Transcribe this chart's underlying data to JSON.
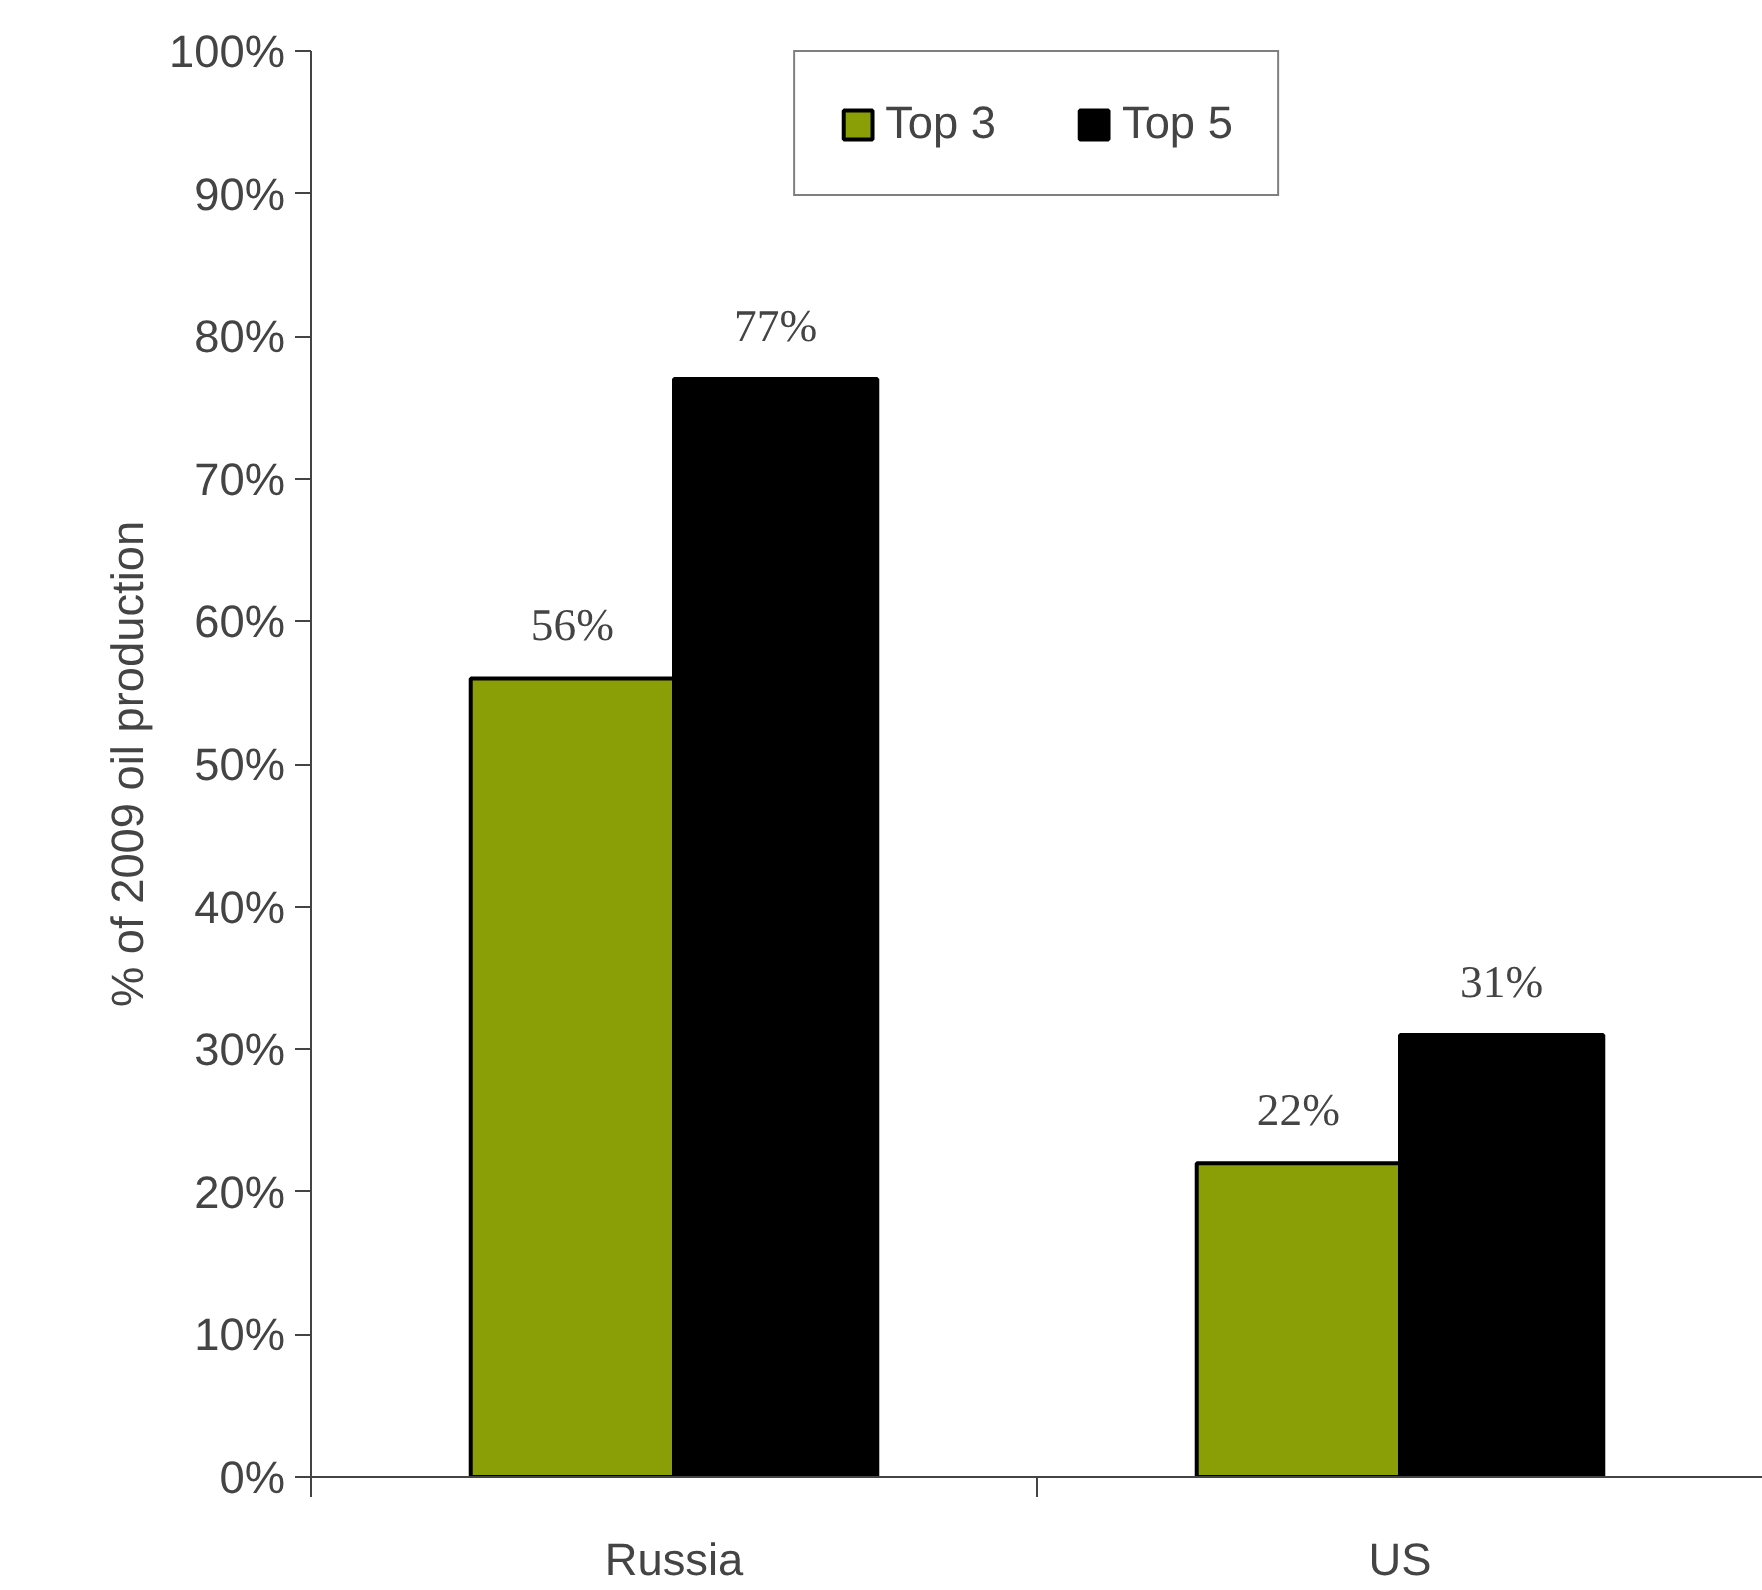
{
  "chart_data": {
    "type": "bar",
    "ylabel": "% of 2009 oil production",
    "categories": [
      "Russia",
      "US"
    ],
    "series": [
      {
        "name": "Top 3",
        "color": "#8a9e06",
        "values": [
          56,
          22
        ],
        "value_labels": [
          "56%",
          "22%"
        ]
      },
      {
        "name": "Top 5",
        "color": "#000000",
        "values": [
          77,
          31
        ],
        "value_labels": [
          "77%",
          "31%"
        ]
      }
    ],
    "ylim": [
      0,
      100
    ],
    "yticks": [
      {
        "value": 0,
        "label": "0%"
      },
      {
        "value": 10,
        "label": "10%"
      },
      {
        "value": 20,
        "label": "20%"
      },
      {
        "value": 30,
        "label": "30%"
      },
      {
        "value": 40,
        "label": "40%"
      },
      {
        "value": 50,
        "label": "50%"
      },
      {
        "value": 60,
        "label": "60%"
      },
      {
        "value": 70,
        "label": "70%"
      },
      {
        "value": 80,
        "label": "80%"
      },
      {
        "value": 90,
        "label": "90%"
      },
      {
        "value": 100,
        "label": "100%"
      }
    ],
    "grid": false,
    "legend": "top"
  }
}
